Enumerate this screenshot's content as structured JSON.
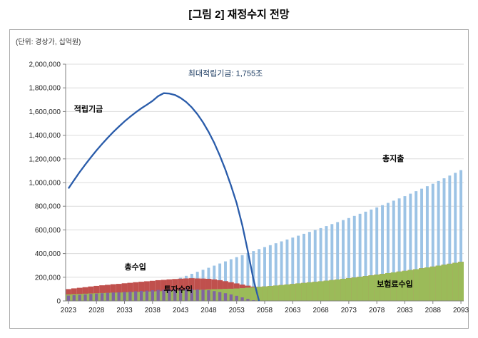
{
  "page": {
    "title": "[그림 2] 재정수지 전망",
    "unit_label": "(단위: 경상가, 십억원)"
  },
  "chart_data": {
    "type": "bar+line",
    "title": "[그림 2] 재정수지 전망",
    "unit": "단위: 경상가, 십억원",
    "grid": true,
    "legend_position": "none (inline labels)",
    "ylim": [
      0,
      2000000
    ],
    "y_ticks": [
      0,
      200000,
      400000,
      600000,
      800000,
      1000000,
      1200000,
      1400000,
      1600000,
      1800000,
      2000000
    ],
    "x_ticks": [
      2023,
      2028,
      2033,
      2038,
      2043,
      2048,
      2053,
      2058,
      2063,
      2068,
      2073,
      2078,
      2083,
      2088,
      2093
    ],
    "years": [
      2023,
      2024,
      2025,
      2026,
      2027,
      2028,
      2029,
      2030,
      2031,
      2032,
      2033,
      2034,
      2035,
      2036,
      2037,
      2038,
      2039,
      2040,
      2041,
      2042,
      2043,
      2044,
      2045,
      2046,
      2047,
      2048,
      2049,
      2050,
      2051,
      2052,
      2053,
      2054,
      2055,
      2056,
      2057,
      2058,
      2059,
      2060,
      2061,
      2062,
      2063,
      2064,
      2065,
      2066,
      2067,
      2068,
      2069,
      2070,
      2071,
      2072,
      2073,
      2074,
      2075,
      2076,
      2077,
      2078,
      2079,
      2080,
      2081,
      2082,
      2083,
      2084,
      2085,
      2086,
      2087,
      2088,
      2089,
      2090,
      2091,
      2092,
      2093
    ],
    "bar_series": [
      {
        "key": "expenditure",
        "name": "총지출",
        "color": "#9CC3E5",
        "bar_frac": 0.5,
        "values": [
          36000,
          40000,
          44000,
          47000,
          51000,
          55000,
          61000,
          67000,
          73000,
          79000,
          85000,
          94000,
          103000,
          112000,
          121000,
          130000,
          143000,
          156000,
          169000,
          182000,
          195000,
          212000,
          229000,
          246000,
          263000,
          280000,
          298000,
          316000,
          334000,
          352000,
          370000,
          387000,
          404000,
          421000,
          438000,
          455000,
          471000,
          487000,
          503000,
          519000,
          535000,
          551000,
          567000,
          583000,
          599000,
          615000,
          632000,
          649000,
          666000,
          683000,
          700000,
          718000,
          736000,
          754000,
          772000,
          790000,
          809000,
          828000,
          847000,
          866000,
          885000,
          906000,
          927000,
          948000,
          969000,
          990000,
          1013000,
          1036000,
          1059000,
          1082000,
          1105000
        ]
      },
      {
        "key": "revenue",
        "name": "총수입",
        "color": "#C0504D",
        "bar_frac": 1.0,
        "values": [
          100000,
          106000,
          111000,
          116000,
          122000,
          127000,
          132000,
          136000,
          141000,
          144000,
          149000,
          153000,
          158000,
          162000,
          166000,
          170000,
          175000,
          178000,
          182000,
          185000,
          188000,
          190000,
          192000,
          190000,
          189000,
          187000,
          182000,
          175000,
          167000,
          158000,
          148000,
          138000,
          129000,
          121000,
          119000,
          122000,
          126000,
          130000,
          134000,
          139000,
          143000,
          148000,
          152000,
          157000,
          161000,
          166000,
          171000,
          176000,
          181000,
          187000,
          192000,
          198000,
          204000,
          210000,
          216000,
          222000,
          228000,
          235000,
          241000,
          248000,
          254000,
          261000,
          268000,
          276000,
          283000,
          290000,
          298000,
          306000,
          314000,
          322000,
          330000
        ]
      },
      {
        "key": "premium",
        "name": "보험료수입",
        "color": "#9BBB59",
        "bar_frac": 1.0,
        "values": [
          55000,
          57000,
          59000,
          61000,
          63000,
          65000,
          67000,
          68000,
          70000,
          71000,
          73000,
          74000,
          76000,
          77000,
          79000,
          80000,
          82000,
          83000,
          85000,
          86000,
          88000,
          90000,
          92000,
          93000,
          95000,
          97000,
          99000,
          100000,
          102000,
          103000,
          105000,
          108000,
          112000,
          115000,
          119000,
          122000,
          126000,
          130000,
          134000,
          139000,
          143000,
          148000,
          152000,
          157000,
          161000,
          166000,
          171000,
          176000,
          181000,
          187000,
          192000,
          198000,
          204000,
          210000,
          216000,
          222000,
          228000,
          235000,
          241000,
          248000,
          254000,
          261000,
          268000,
          276000,
          283000,
          290000,
          298000,
          306000,
          314000,
          322000,
          330000
        ]
      },
      {
        "key": "investment",
        "name": "투자수익",
        "color": "#8064A2",
        "bar_frac": 0.55,
        "values": [
          45000,
          49000,
          52000,
          55000,
          59000,
          62000,
          65000,
          68000,
          71000,
          73000,
          76000,
          79000,
          82000,
          85000,
          87000,
          90000,
          93000,
          95000,
          97000,
          99000,
          100000,
          100000,
          100000,
          97000,
          94000,
          90000,
          83000,
          75000,
          65000,
          55000,
          43000,
          30000,
          17000,
          6000,
          0,
          0,
          0,
          0,
          0,
          0,
          0,
          0,
          0,
          0,
          0,
          0,
          0,
          0,
          0,
          0,
          0,
          0,
          0,
          0,
          0,
          0,
          0,
          0,
          0,
          0,
          0,
          0,
          0,
          0,
          0,
          0,
          0,
          0,
          0,
          0,
          0
        ]
      }
    ],
    "line_series": {
      "key": "fund",
      "name": "적립기금",
      "color": "#2A5CAA",
      "x_start": 2023,
      "peak": {
        "year": 2040,
        "value": 1755000
      },
      "depletion_year": 2057,
      "values": [
        950000,
        1020000,
        1088000,
        1152000,
        1213000,
        1271000,
        1326000,
        1378000,
        1427000,
        1473000,
        1516000,
        1556000,
        1593000,
        1627000,
        1658000,
        1690000,
        1730000,
        1755000,
        1752000,
        1740000,
        1715000,
        1680000,
        1635000,
        1578000,
        1509000,
        1428000,
        1335000,
        1228000,
        1108000,
        974000,
        826000,
        640000,
        420000,
        180000,
        0
      ]
    },
    "annotations": [
      {
        "key": "fund-label",
        "text": "적립기금",
        "year": 2024,
        "value": 1600000,
        "anchor": "start",
        "bold": true,
        "color": "#000000"
      },
      {
        "key": "max-fund-note",
        "text": "최대적립기금: 1,755조",
        "year": 2051,
        "value": 1900000,
        "anchor": "middle",
        "bold": false,
        "color": "#17375E"
      },
      {
        "key": "revenue-label",
        "text": "총수입",
        "year": 2033,
        "value": 265000,
        "anchor": "start",
        "bold": true,
        "color": "#000000"
      },
      {
        "key": "investment-label",
        "text": "투자수익",
        "year": 2040,
        "value": 75000,
        "anchor": "start",
        "bold": true,
        "color": "#000000"
      },
      {
        "key": "expenditure-label",
        "text": "총지출",
        "year": 2079,
        "value": 1180000,
        "anchor": "start",
        "bold": true,
        "color": "#000000"
      },
      {
        "key": "premium-label",
        "text": "보험료수입",
        "year": 2078,
        "value": 120000,
        "anchor": "start",
        "bold": true,
        "color": "#000000"
      }
    ]
  }
}
